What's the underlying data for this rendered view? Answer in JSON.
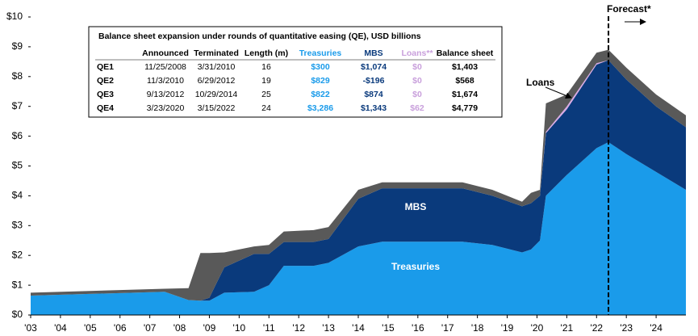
{
  "chart_data": {
    "type": "stacked-area",
    "x": [
      2003,
      2007.5,
      2008.3,
      2008.7,
      2009.0,
      2009.5,
      2010.5,
      2011.0,
      2011.5,
      2012.5,
      2013.0,
      2014.0,
      2014.8,
      2017.5,
      2018.5,
      2019.5,
      2019.8,
      2020.1,
      2020.3,
      2021.0,
      2022.0,
      2022.4,
      2023.0,
      2024.0,
      2025.0
    ],
    "series": [
      {
        "name": "Treasuries",
        "color": "#1a9bea",
        "values": [
          0.65,
          0.78,
          0.5,
          0.48,
          0.48,
          0.75,
          0.78,
          1.0,
          1.65,
          1.65,
          1.75,
          2.3,
          2.46,
          2.46,
          2.35,
          2.1,
          2.2,
          2.5,
          4.0,
          4.7,
          5.6,
          5.8,
          5.4,
          4.8,
          4.2
        ]
      },
      {
        "name": "MBS",
        "color": "#0a3a7c",
        "values": [
          0,
          0,
          0,
          0,
          0.1,
          0.85,
          1.27,
          1.05,
          0.8,
          0.8,
          0.8,
          1.6,
          1.79,
          1.79,
          1.65,
          1.55,
          1.55,
          1.5,
          2.1,
          2.2,
          2.8,
          2.75,
          2.5,
          2.2,
          2.1
        ]
      },
      {
        "name": "Loans",
        "color": "#d9a9e6",
        "values": [
          0,
          0,
          0,
          0,
          0,
          0,
          0,
          0,
          0,
          0,
          0,
          0,
          0,
          0,
          0,
          0,
          0,
          0,
          0.05,
          0.1,
          0.05,
          0,
          0,
          0,
          0
        ]
      },
      {
        "color": "#595959",
        "values": [
          0.1,
          0.1,
          0.4,
          1.6,
          1.5,
          0.5,
          0.25,
          0.3,
          0.35,
          0.4,
          0.4,
          0.3,
          0.2,
          0.2,
          0.2,
          0.15,
          0.35,
          0.2,
          0.95,
          0.4,
          0.35,
          0.35,
          0.4,
          0.4,
          0.4
        ]
      }
    ],
    "xlim": [
      2003,
      2025
    ],
    "xticks": [
      {
        "value": 2003,
        "label": "'03"
      },
      {
        "value": 2004,
        "label": "'04"
      },
      {
        "value": 2005,
        "label": "'05"
      },
      {
        "value": 2006,
        "label": "'06"
      },
      {
        "value": 2007,
        "label": "'07"
      },
      {
        "value": 2008,
        "label": "'08"
      },
      {
        "value": 2009,
        "label": "'09"
      },
      {
        "value": 2010,
        "label": "'10"
      },
      {
        "value": 2011,
        "label": "'11"
      },
      {
        "value": 2012,
        "label": "'12"
      },
      {
        "value": 2013,
        "label": "'13"
      },
      {
        "value": 2014,
        "label": "'14"
      },
      {
        "value": 2015,
        "label": "'15"
      },
      {
        "value": 2016,
        "label": "'16"
      },
      {
        "value": 2017,
        "label": "'17"
      },
      {
        "value": 2018,
        "label": "'18"
      },
      {
        "value": 2019,
        "label": "'19"
      },
      {
        "value": 2020,
        "label": "'20"
      },
      {
        "value": 2021,
        "label": "'21"
      },
      {
        "value": 2022,
        "label": "'22"
      },
      {
        "value": 2023,
        "label": "'23"
      },
      {
        "value": 2024,
        "label": "'24"
      }
    ],
    "ylim": [
      0,
      10
    ],
    "yticks": [
      {
        "value": 0,
        "label": "$0"
      },
      {
        "value": 1,
        "label": "$1"
      },
      {
        "value": 2,
        "label": "$2"
      },
      {
        "value": 3,
        "label": "$3"
      },
      {
        "value": 4,
        "label": "$4"
      },
      {
        "value": 5,
        "label": "$5"
      },
      {
        "value": 6,
        "label": "$6"
      },
      {
        "value": 7,
        "label": "$7"
      },
      {
        "value": 8,
        "label": "$8"
      },
      {
        "value": 9,
        "label": "$9"
      },
      {
        "value": 10,
        "label": "$10"
      }
    ],
    "forecast": {
      "label": "Forecast*",
      "x": 2022.4
    },
    "table": {
      "title": "Balance sheet expansion under rounds of quantitative easing (QE), USD billions",
      "columns": [
        "Announced",
        "Terminated",
        "Length (m)",
        "Treasuries",
        "MBS",
        "Loans**",
        "Balance sheet"
      ],
      "column_colors": [
        "#000000",
        "#000000",
        "#000000",
        "#1a9bea",
        "#0a3a7c",
        "#c9a0dc",
        "#000000"
      ],
      "rows": [
        {
          "label": "QE1",
          "cells": [
            "11/25/2008",
            "3/31/2010",
            "16",
            "$300",
            "$1,074",
            "$0",
            "$1,403"
          ]
        },
        {
          "label": "QE2",
          "cells": [
            "11/3/2010",
            "6/29/2012",
            "19",
            "$829",
            "-$196",
            "$0",
            "$568"
          ]
        },
        {
          "label": "QE3",
          "cells": [
            "9/13/2012",
            "10/29/2014",
            "25",
            "$822",
            "$874",
            "$0",
            "$1,674"
          ]
        },
        {
          "label": "QE4",
          "cells": [
            "3/23/2020",
            "3/15/2022",
            "24",
            "$3,286",
            "$1,343",
            "$62",
            "$4,779"
          ]
        }
      ]
    }
  }
}
